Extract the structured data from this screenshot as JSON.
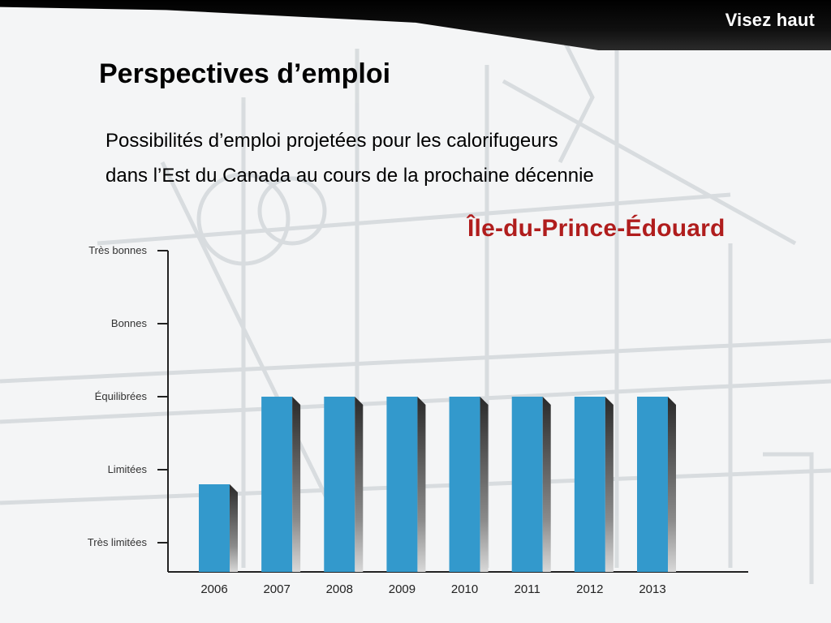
{
  "header": {
    "brand": "Visez haut"
  },
  "slide": {
    "title": "Perspectives d’emploi",
    "subtitle_line1": "Possibilités d’emploi projetées pour les calorifugeurs",
    "subtitle_line2": "dans l’Est du Canada au cours de la prochaine décennie",
    "region": "Île-du-Prince-Édouard"
  },
  "chart_data": {
    "type": "bar",
    "categories": [
      "2006",
      "2007",
      "2008",
      "2009",
      "2010",
      "2011",
      "2012",
      "2013"
    ],
    "values": [
      1.8,
      3,
      3,
      3,
      3,
      3,
      3,
      3
    ],
    "y_levels": [
      "Très limitées",
      "Limitées",
      "Équilibrées",
      "Bonnes",
      "Très bonnes"
    ],
    "y_level_values": [
      1,
      2,
      3,
      4,
      5
    ],
    "ylim": [
      0.6,
      5
    ],
    "title": "",
    "xlabel": "",
    "ylabel": "",
    "bar_color": "#3399cc",
    "grid": false
  }
}
